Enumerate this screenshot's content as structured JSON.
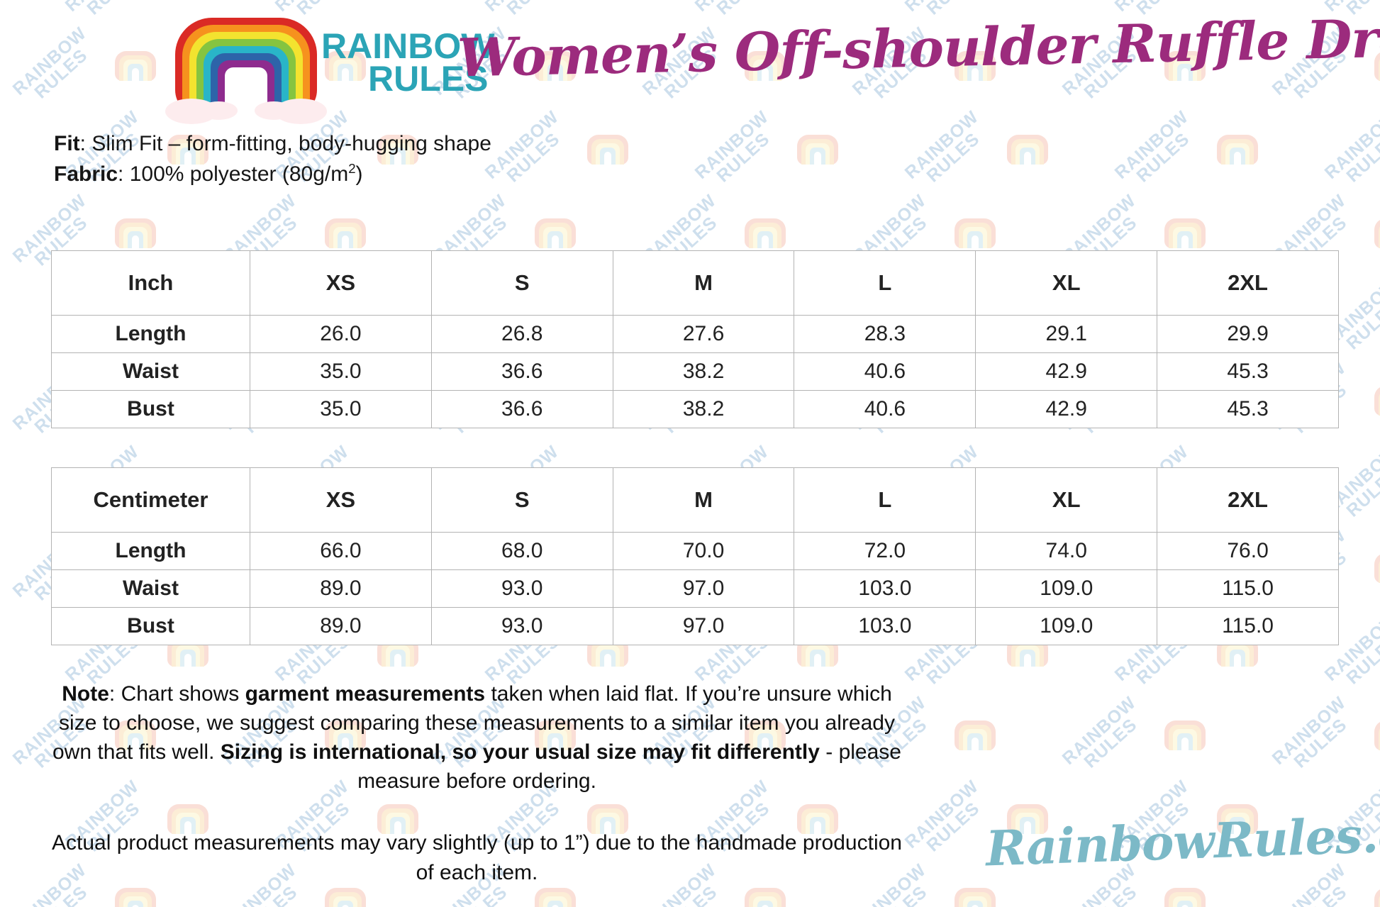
{
  "brand": {
    "logo_text_line1": "RAINBOW",
    "logo_text_line2": "RULES"
  },
  "title": "Women’s Off-shoulder Ruffle Dress",
  "product_info": {
    "lines": [
      [
        {
          "text": "Fit",
          "bold": true
        },
        {
          "text": ": Slim Fit – form-fitting, body-hugging shape"
        }
      ],
      [
        {
          "text": "Fabric",
          "bold": true
        },
        {
          "text": ": 100% polyester (80g/m"
        },
        {
          "text": "2",
          "sup": true
        },
        {
          "text": ")"
        }
      ]
    ]
  },
  "size_tables": [
    {
      "unit_header": "Inch",
      "columns": [
        "XS",
        "S",
        "M",
        "L",
        "XL",
        "2XL"
      ],
      "rows": [
        {
          "label": "Length",
          "values": [
            "26.0",
            "26.8",
            "27.6",
            "28.3",
            "29.1",
            "29.9"
          ]
        },
        {
          "label": "Waist",
          "values": [
            "35.0",
            "36.6",
            "38.2",
            "40.6",
            "42.9",
            "45.3"
          ]
        },
        {
          "label": "Bust",
          "values": [
            "35.0",
            "36.6",
            "38.2",
            "40.6",
            "42.9",
            "45.3"
          ]
        }
      ]
    },
    {
      "unit_header": "Centimeter",
      "columns": [
        "XS",
        "S",
        "M",
        "L",
        "XL",
        "2XL"
      ],
      "rows": [
        {
          "label": "Length",
          "values": [
            "66.0",
            "68.0",
            "70.0",
            "72.0",
            "74.0",
            "76.0"
          ]
        },
        {
          "label": "Waist",
          "values": [
            "89.0",
            "93.0",
            "97.0",
            "103.0",
            "109.0",
            "115.0"
          ]
        },
        {
          "label": "Bust",
          "values": [
            "89.0",
            "93.0",
            "97.0",
            "103.0",
            "109.0",
            "115.0"
          ]
        }
      ]
    }
  ],
  "note": {
    "segments": [
      {
        "text": "Note",
        "bold": true
      },
      {
        "text": ": Chart shows "
      },
      {
        "text": "garment measurements",
        "bold": true
      },
      {
        "text": " taken when laid flat. If you’re unsure which size to choose, we suggest comparing these measurements to a similar item you already own that fits well. "
      },
      {
        "text": "Sizing is international, so your usual size may fit differently",
        "bold": true
      },
      {
        "text": " - please measure before ordering."
      }
    ]
  },
  "disclaimer": "Actual product measurements may vary slightly (up to 1”) due to the handmade production of each item.",
  "website": "RainbowRules.com",
  "watermark_text": "RAINBOW RULES",
  "colors": {
    "title_magenta": "#9c2b7d",
    "logo_teal": "#2ba4b6",
    "website_teal": "#7cb9c7",
    "table_border": "#b3b3b3",
    "body_text": "#161616",
    "rainbow_red": "#da2a25",
    "rainbow_orange": "#f6921e",
    "rainbow_yellow": "#f3e32f",
    "rainbow_green": "#85c440",
    "rainbow_cyan": "#29b5c8",
    "rainbow_blue": "#2d64a9",
    "rainbow_purple": "#8e2b8e"
  }
}
